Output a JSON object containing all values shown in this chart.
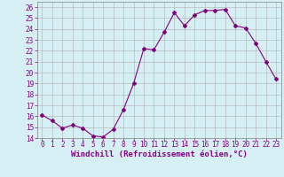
{
  "x": [
    0,
    1,
    2,
    3,
    4,
    5,
    6,
    7,
    8,
    9,
    10,
    11,
    12,
    13,
    14,
    15,
    16,
    17,
    18,
    19,
    20,
    21,
    22,
    23
  ],
  "y": [
    16.1,
    15.6,
    14.9,
    15.2,
    14.9,
    14.2,
    14.1,
    14.8,
    16.6,
    19.0,
    22.2,
    22.1,
    23.7,
    25.5,
    24.3,
    25.3,
    25.7,
    25.7,
    25.8,
    24.3,
    24.1,
    22.7,
    21.0,
    19.4
  ],
  "line_color": "#800080",
  "marker": "D",
  "marker_size": 2,
  "bg_color": "#d6eff5",
  "grid_color": "#b0b0b0",
  "xlabel": "Windchill (Refroidissement éolien,°C)",
  "xlabel_color": "#800080",
  "tick_color": "#800080",
  "ylim": [
    14,
    26.5
  ],
  "yticks": [
    14,
    15,
    16,
    17,
    18,
    19,
    20,
    21,
    22,
    23,
    24,
    25,
    26
  ],
  "xlim": [
    -0.5,
    23.5
  ],
  "xticks": [
    0,
    1,
    2,
    3,
    4,
    5,
    6,
    7,
    8,
    9,
    10,
    11,
    12,
    13,
    14,
    15,
    16,
    17,
    18,
    19,
    20,
    21,
    22,
    23
  ],
  "tick_fontsize": 5.5,
  "xlabel_fontsize": 6.5
}
